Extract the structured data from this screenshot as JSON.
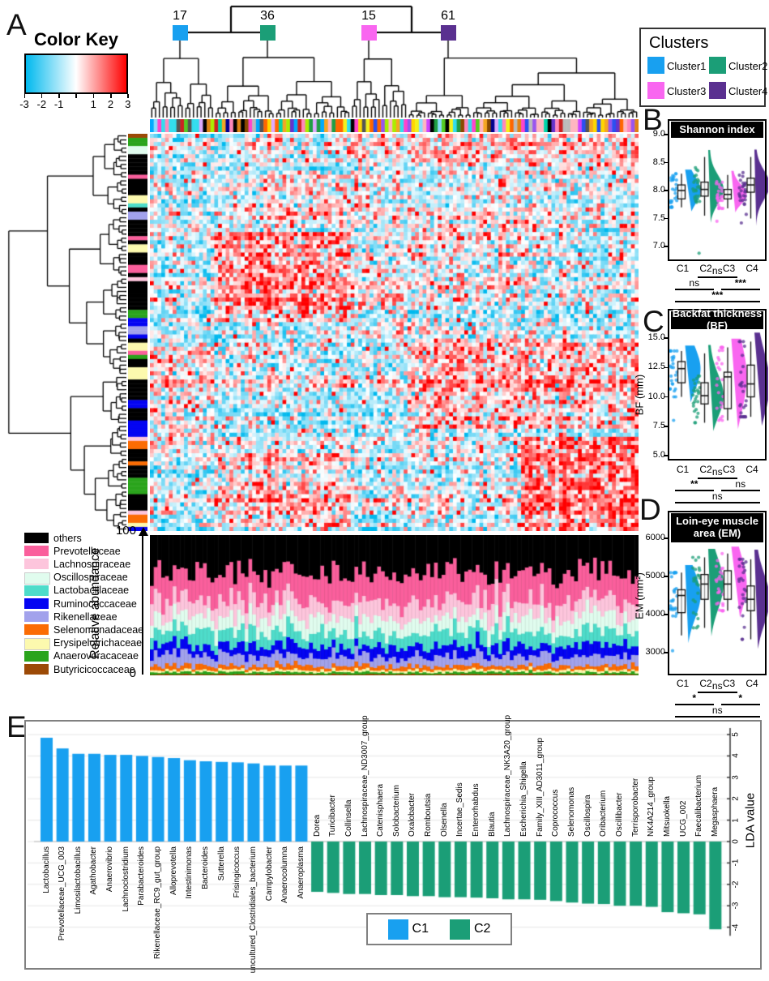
{
  "panels": {
    "a": {
      "label": "A",
      "color_key": {
        "title": "Color Key",
        "tick_labels": [
          "-3",
          "-2",
          "-1",
          "",
          "1",
          "2",
          "3"
        ],
        "low": "#00b9ee",
        "mid": "#ffffff",
        "high": "#fe0000"
      },
      "clusters_legend": {
        "title": "Clusters",
        "items": [
          {
            "label": "Cluster1",
            "color": "#18a0f0"
          },
          {
            "label": "Cluster2",
            "color": "#1b9e77"
          },
          {
            "label": "Cluster3",
            "color": "#f966f0"
          },
          {
            "label": "Cluster4",
            "color": "#5a3090"
          }
        ]
      },
      "cluster_counts": [
        "17",
        "36",
        "15",
        "61"
      ],
      "abundance_axis": {
        "label": "Relative abundance",
        "max": "100",
        "min": "0"
      },
      "taxa_legend": [
        {
          "name": "others",
          "color": "#000000"
        },
        {
          "name": "Prevotellaceae",
          "color": "#fa5f9c"
        },
        {
          "name": "Lachnospiraceae",
          "color": "#fdc5dc"
        },
        {
          "name": "Oscillospiraceae",
          "color": "#e0fcee"
        },
        {
          "name": "Lactobacillaceae",
          "color": "#4edcca"
        },
        {
          "name": "Ruminococcaceae",
          "color": "#0404f2"
        },
        {
          "name": "Rikenellaceae",
          "color": "#a2a2ec"
        },
        {
          "name": "Selenomonadaceae",
          "color": "#fb6c04"
        },
        {
          "name": "Erysipelotrichaceae",
          "color": "#fcf9ae"
        },
        {
          "name": "Anaerovoracaceae",
          "color": "#2aa41c"
        },
        {
          "name": "Butyricicoccaceae",
          "color": "#9c4a06"
        }
      ]
    },
    "b": {
      "label": "B",
      "title": "Shannon index"
    },
    "c": {
      "label": "C",
      "title": "Backfat thickness (BF)",
      "ylabel": "BF (mm)"
    },
    "d": {
      "label": "D",
      "title": "Loin-eye muscle area (EM)",
      "ylabel": "EM (mm²)"
    },
    "e": {
      "label": "E",
      "ylabel": "LDA value",
      "legend": [
        {
          "label": "C1",
          "color": "#18a0f0"
        },
        {
          "label": "C2",
          "color": "#1b9e77"
        }
      ]
    }
  },
  "chart_data": [
    {
      "id": "heatmap",
      "type": "heatmap",
      "n_samples": 129,
      "n_taxa_rows": 97,
      "cluster_sizes": {
        "Cluster1": 17,
        "Cluster2": 36,
        "Cluster3": 15,
        "Cluster4": 61
      },
      "zlim": [
        -3,
        3
      ],
      "colorscale": [
        "#00b9ee",
        "#ffffff",
        "#fe0000"
      ],
      "legend_note": "Z-scored abundance heatmap; column dendrogram cut into 4 sample clusters (17/36/15/61), row dendrogram of taxa with family color strip"
    },
    {
      "id": "abundance",
      "type": "bar",
      "stacked": true,
      "n_bars": 129,
      "ylabel": "Relative abundance",
      "ylim": [
        0,
        100
      ],
      "series": [
        {
          "name": "others",
          "color": "#000000",
          "mean_pct": 27
        },
        {
          "name": "Prevotellaceae",
          "color": "#fa5f9c",
          "mean_pct": 20
        },
        {
          "name": "Lachnospiraceae",
          "color": "#fdc5dc",
          "mean_pct": 12
        },
        {
          "name": "Oscillospiraceae",
          "color": "#e0fcee",
          "mean_pct": 10
        },
        {
          "name": "Lactobacillaceae",
          "color": "#4edcca",
          "mean_pct": 10
        },
        {
          "name": "Ruminococcaceae",
          "color": "#0404f2",
          "mean_pct": 7
        },
        {
          "name": "Rikenellaceae",
          "color": "#a2a2ec",
          "mean_pct": 7
        },
        {
          "name": "Selenomonadaceae",
          "color": "#fb6c04",
          "mean_pct": 3
        },
        {
          "name": "Erysipelotrichaceae",
          "color": "#fcf9ae",
          "mean_pct": 1.5
        },
        {
          "name": "Anaerovoracaceae",
          "color": "#2aa41c",
          "mean_pct": 1.5
        },
        {
          "name": "Butyricicoccaceae",
          "color": "#9c4a06",
          "mean_pct": 1
        }
      ]
    },
    {
      "id": "shannon",
      "type": "box",
      "title": "Shannon index",
      "categories": [
        "C1",
        "C2",
        "C3",
        "C4"
      ],
      "colors": [
        "#18a0f0",
        "#1b9e77",
        "#f966f0",
        "#5a3090"
      ],
      "ylim": [
        6.7,
        9.3
      ],
      "yticks": [
        7.0,
        7.5,
        8.0,
        8.5,
        9.0
      ],
      "ytick_labels": [
        "7.0",
        "7.5",
        "8.0",
        "8.5",
        "9.0"
      ],
      "stats": [
        {
          "group": "C1",
          "median": 8.0,
          "q1": 7.85,
          "q3": 8.1,
          "whisker_low": 7.7,
          "whisker_high": 8.3,
          "outliers": []
        },
        {
          "group": "C2",
          "median": 8.02,
          "q1": 7.9,
          "q3": 8.15,
          "whisker_low": 7.55,
          "whisker_high": 8.6,
          "outliers": [
            6.88
          ]
        },
        {
          "group": "C3",
          "median": 7.93,
          "q1": 7.85,
          "q3": 8.02,
          "whisker_low": 7.68,
          "whisker_high": 8.28,
          "outliers": [
            7.45
          ]
        },
        {
          "group": "C4",
          "median": 8.1,
          "q1": 7.97,
          "q3": 8.22,
          "whisker_low": 7.5,
          "whisker_high": 8.6,
          "outliers": [
            9.0,
            7.42
          ]
        }
      ],
      "significance": [
        [
          "C2",
          "C3",
          "ns"
        ],
        [
          "C1",
          "C2",
          "ns"
        ],
        [
          "C3",
          "C4",
          "***"
        ],
        [
          "C1",
          "C4",
          "***"
        ]
      ]
    },
    {
      "id": "bf",
      "type": "box",
      "title": "Backfat thickness (BF)",
      "ylabel": "BF (mm)",
      "categories": [
        "C1",
        "C2",
        "C3",
        "C4"
      ],
      "colors": [
        "#18a0f0",
        "#1b9e77",
        "#f966f0",
        "#5a3090"
      ],
      "ylim": [
        4.6,
        15.6
      ],
      "yticks": [
        5.0,
        7.5,
        10.0,
        12.5,
        15.0
      ],
      "ytick_labels": [
        "5.0",
        "7.5",
        "10.0",
        "12.5",
        "15.0"
      ],
      "stats": [
        {
          "group": "C1",
          "median": 12.4,
          "q1": 11.2,
          "q3": 13.0,
          "whisker_low": 10.0,
          "whisker_high": 13.9,
          "outliers": [
            8.0
          ]
        },
        {
          "group": "C2",
          "median": 10.1,
          "q1": 9.4,
          "q3": 11.2,
          "whisker_low": 7.8,
          "whisker_high": 13.7,
          "outliers": []
        },
        {
          "group": "C3",
          "median": 11.7,
          "q1": 9.0,
          "q3": 12.1,
          "whisker_low": 8.0,
          "whisker_high": 14.2,
          "outliers": []
        },
        {
          "group": "C4",
          "median": 11.1,
          "q1": 10.0,
          "q3": 12.7,
          "whisker_low": 8.3,
          "whisker_high": 14.7,
          "outliers": []
        }
      ],
      "significance": [
        [
          "C2",
          "C3",
          "ns"
        ],
        [
          "C1",
          "C2",
          "**"
        ],
        [
          "C3",
          "C4",
          "ns"
        ],
        [
          "C1",
          "C4",
          "ns"
        ]
      ]
    },
    {
      "id": "em",
      "type": "box",
      "title": "Loin-eye muscle area (EM)",
      "ylabel": "EM (mm²)",
      "categories": [
        "C1",
        "C2",
        "C3",
        "C4"
      ],
      "colors": [
        "#18a0f0",
        "#1b9e77",
        "#f966f0",
        "#5a3090"
      ],
      "ylim": [
        2800,
        6300
      ],
      "yticks": [
        3000,
        4000,
        5000,
        6000
      ],
      "ytick_labels": [
        "3000",
        "4000",
        "5000",
        "6000"
      ],
      "stats": [
        {
          "group": "C1",
          "median": 4500,
          "q1": 4050,
          "q3": 4650,
          "whisker_low": 3450,
          "whisker_high": 5100,
          "outliers": [
            3050
          ]
        },
        {
          "group": "C2",
          "median": 4800,
          "q1": 4400,
          "q3": 5050,
          "whisker_low": 3650,
          "whisker_high": 5500,
          "outliers": []
        },
        {
          "group": "C3",
          "median": 4800,
          "q1": 4400,
          "q3": 5150,
          "whisker_low": 4100,
          "whisker_high": 5600,
          "outliers": []
        },
        {
          "group": "C4",
          "median": 4400,
          "q1": 4100,
          "q3": 4750,
          "whisker_low": 3350,
          "whisker_high": 5450,
          "outliers": []
        }
      ],
      "significance": [
        [
          "C2",
          "C3",
          "ns"
        ],
        [
          "C1",
          "C2",
          "*"
        ],
        [
          "C3",
          "C4",
          "*"
        ],
        [
          "C1",
          "C4",
          "ns"
        ]
      ]
    },
    {
      "id": "lda",
      "type": "bar",
      "ylabel": "LDA value",
      "ylim": [
        -4.5,
        5.5
      ],
      "yticks": [
        5,
        4,
        3,
        2,
        1,
        0,
        -1,
        -2,
        -3,
        -4
      ],
      "ytick_labels": [
        "5",
        "4",
        "3",
        "2",
        "1",
        "0",
        "-1",
        "-2",
        "-3",
        "-4"
      ],
      "series": [
        {
          "name": "C1",
          "color": "#18a0f0",
          "categories": [
            "Lactobacillus",
            "Prevotellaceae_UCG_003",
            "Limosilactobacillus",
            "Agathobacter",
            "Anaerovibrio",
            "Lachnoclostridium",
            "Parabacteroides",
            "Rikenellaceae_RC9_gut_group",
            "Alloprevotella",
            "Intestinimonas",
            "Bacteroides",
            "Sutterella",
            "Frisingicoccus",
            "uncultured_Clostridiales_bacterium",
            "Campylobacter",
            "Anaerocolumna",
            "Anaeroplasma"
          ],
          "values": [
            4.85,
            4.35,
            4.1,
            4.1,
            4.05,
            4.05,
            4.0,
            3.95,
            3.9,
            3.8,
            3.75,
            3.72,
            3.7,
            3.65,
            3.55,
            3.55,
            3.55
          ]
        },
        {
          "name": "C2",
          "color": "#1b9e77",
          "categories": [
            "Dorea",
            "Turicibacter",
            "Collinsella",
            "Lachnospiraceae_ND3007_group",
            "Catenisphaera",
            "Solobacterium",
            "Oxalobacter",
            "Romboutsia",
            "Olsenella",
            "Incertae_Sedis",
            "Enterorhabdus",
            "Blautia",
            "Lachnospiraceae_NK3A20_group",
            "Escherichia_Shigella",
            "Family_XIII_AD3011_group",
            "Coprococcus",
            "Selenomonas",
            "Oscillospira",
            "Oribacterium",
            "Oscillibacter",
            "Terrisporobacter",
            "NK4A214_group",
            "Mitsuokella",
            "UCG_002",
            "Faecalibacterium",
            "Megasphaera"
          ],
          "values": [
            -2.35,
            -2.4,
            -2.45,
            -2.45,
            -2.5,
            -2.5,
            -2.55,
            -2.55,
            -2.6,
            -2.6,
            -2.62,
            -2.65,
            -2.7,
            -2.7,
            -2.72,
            -2.78,
            -2.85,
            -2.9,
            -2.92,
            -3.0,
            -3.0,
            -3.05,
            -3.3,
            -3.35,
            -3.4,
            -4.1
          ]
        }
      ]
    }
  ]
}
